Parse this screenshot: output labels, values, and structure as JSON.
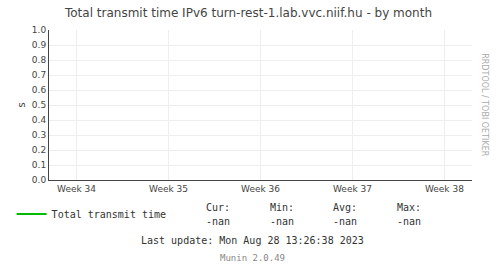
{
  "chart_data": {
    "type": "line",
    "title": "Total transmit time IPv6 turn-rest-1.lab.vvc.niif.hu - by month",
    "y_label": "s",
    "categories": [
      "Week 34",
      "Week 35",
      "Week 36",
      "Week 37",
      "Week 38"
    ],
    "series": [
      {
        "name": "Total transmit time",
        "color": "#00bb00",
        "values": [
          null,
          null,
          null,
          null,
          null
        ]
      }
    ],
    "ylim": [
      0.0,
      1.0
    ],
    "yticks": [
      {
        "value": 0.0,
        "label": "0.0"
      },
      0.1,
      0.2,
      0.3,
      0.4,
      0.5,
      0.6,
      0.7,
      0.8,
      0.9,
      {
        "value": 1.0,
        "label": "1.0"
      }
    ],
    "grid": true,
    "legend": "lower left",
    "annotations": {
      "stats": [
        [
          "Cur:",
          "-nan"
        ],
        [
          "Min:",
          "-nan"
        ],
        [
          "Avg:",
          "-nan"
        ],
        [
          "Max:",
          "-nan"
        ]
      ],
      "footer": [
        "Last update: Mon Aug 28 13:26:38 2023",
        "Munin 2.0.49"
      ],
      "watermark": "RRDTOOL / TOBI OETIKER"
    }
  }
}
